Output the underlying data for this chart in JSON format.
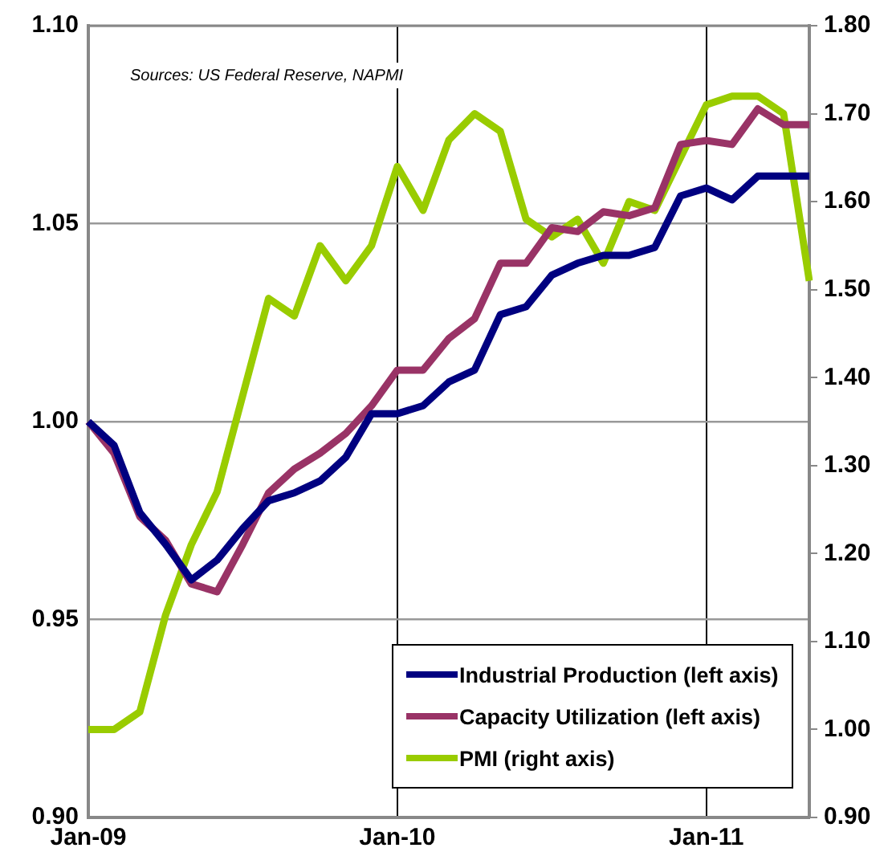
{
  "chart_data": {
    "type": "line",
    "annotations": [
      "Sources: US Federal Reserve, NAPMI"
    ],
    "categories": [
      "Jan-09",
      null,
      null,
      null,
      null,
      null,
      null,
      null,
      null,
      null,
      null,
      null,
      "Jan-10",
      null,
      null,
      null,
      null,
      null,
      null,
      null,
      null,
      null,
      null,
      null,
      "Jan-11",
      null,
      null,
      null,
      null
    ],
    "series": [
      {
        "name": "Industrial Production (left axis)",
        "color": "#000080",
        "values": [
          1.0,
          0.994,
          0.977,
          0.969,
          0.96,
          0.965,
          0.973,
          0.98,
          0.982,
          0.985,
          0.991,
          1.002,
          1.002,
          1.004,
          1.01,
          1.013,
          1.027,
          1.029,
          1.037,
          1.04,
          1.042,
          1.042,
          1.044,
          1.057,
          1.059,
          1.056,
          1.062,
          1.062,
          1.062
        ]
      },
      {
        "name": "Capacity Utilization (left axis)",
        "color": "#993366",
        "values": [
          1.0,
          0.992,
          0.976,
          0.97,
          0.959,
          0.957,
          0.969,
          0.982,
          0.988,
          0.992,
          0.997,
          1.004,
          1.013,
          1.013,
          1.021,
          1.026,
          1.04,
          1.04,
          1.049,
          1.048,
          1.053,
          1.052,
          1.054,
          1.07,
          1.071,
          1.07,
          1.079,
          1.075,
          1.075
        ]
      },
      {
        "name": "PMI (right axis)",
        "color": "#99cc00",
        "axis": "y2",
        "values": [
          1.0,
          1.0,
          1.02,
          1.13,
          1.21,
          1.27,
          1.38,
          1.49,
          1.47,
          1.55,
          1.51,
          1.55,
          1.64,
          1.59,
          1.67,
          1.7,
          1.68,
          1.58,
          1.56,
          1.58,
          1.53,
          1.6,
          1.59,
          1.65,
          1.71,
          1.72,
          1.72,
          1.7,
          1.51
        ]
      }
    ],
    "ylim": [
      0.9,
      1.1
    ],
    "yticks": [
      {
        "value": 0.9,
        "label": "0.90"
      },
      {
        "value": 0.95,
        "label": "0.95"
      },
      {
        "value": 1.0,
        "label": "1.00"
      },
      {
        "value": 1.05,
        "label": "1.05"
      },
      {
        "value": 1.1,
        "label": "1.10"
      }
    ],
    "y2lim": [
      0.9,
      1.8
    ],
    "y2ticks": [
      {
        "value": 0.9,
        "label": "0.90"
      },
      {
        "value": 1.0,
        "label": "1.00"
      },
      {
        "value": 1.1,
        "label": "1.10"
      },
      {
        "value": 1.2,
        "label": "1.20"
      },
      {
        "value": 1.3,
        "label": "1.30"
      },
      {
        "value": 1.4,
        "label": "1.40"
      },
      {
        "value": 1.5,
        "label": "1.50"
      },
      {
        "value": 1.6,
        "label": "1.60"
      },
      {
        "value": 1.7,
        "label": "1.70"
      },
      {
        "value": 1.8,
        "label": "1.80"
      }
    ],
    "grid": true,
    "legend": "bottom right",
    "marker": "none",
    "line_style": "solid"
  }
}
